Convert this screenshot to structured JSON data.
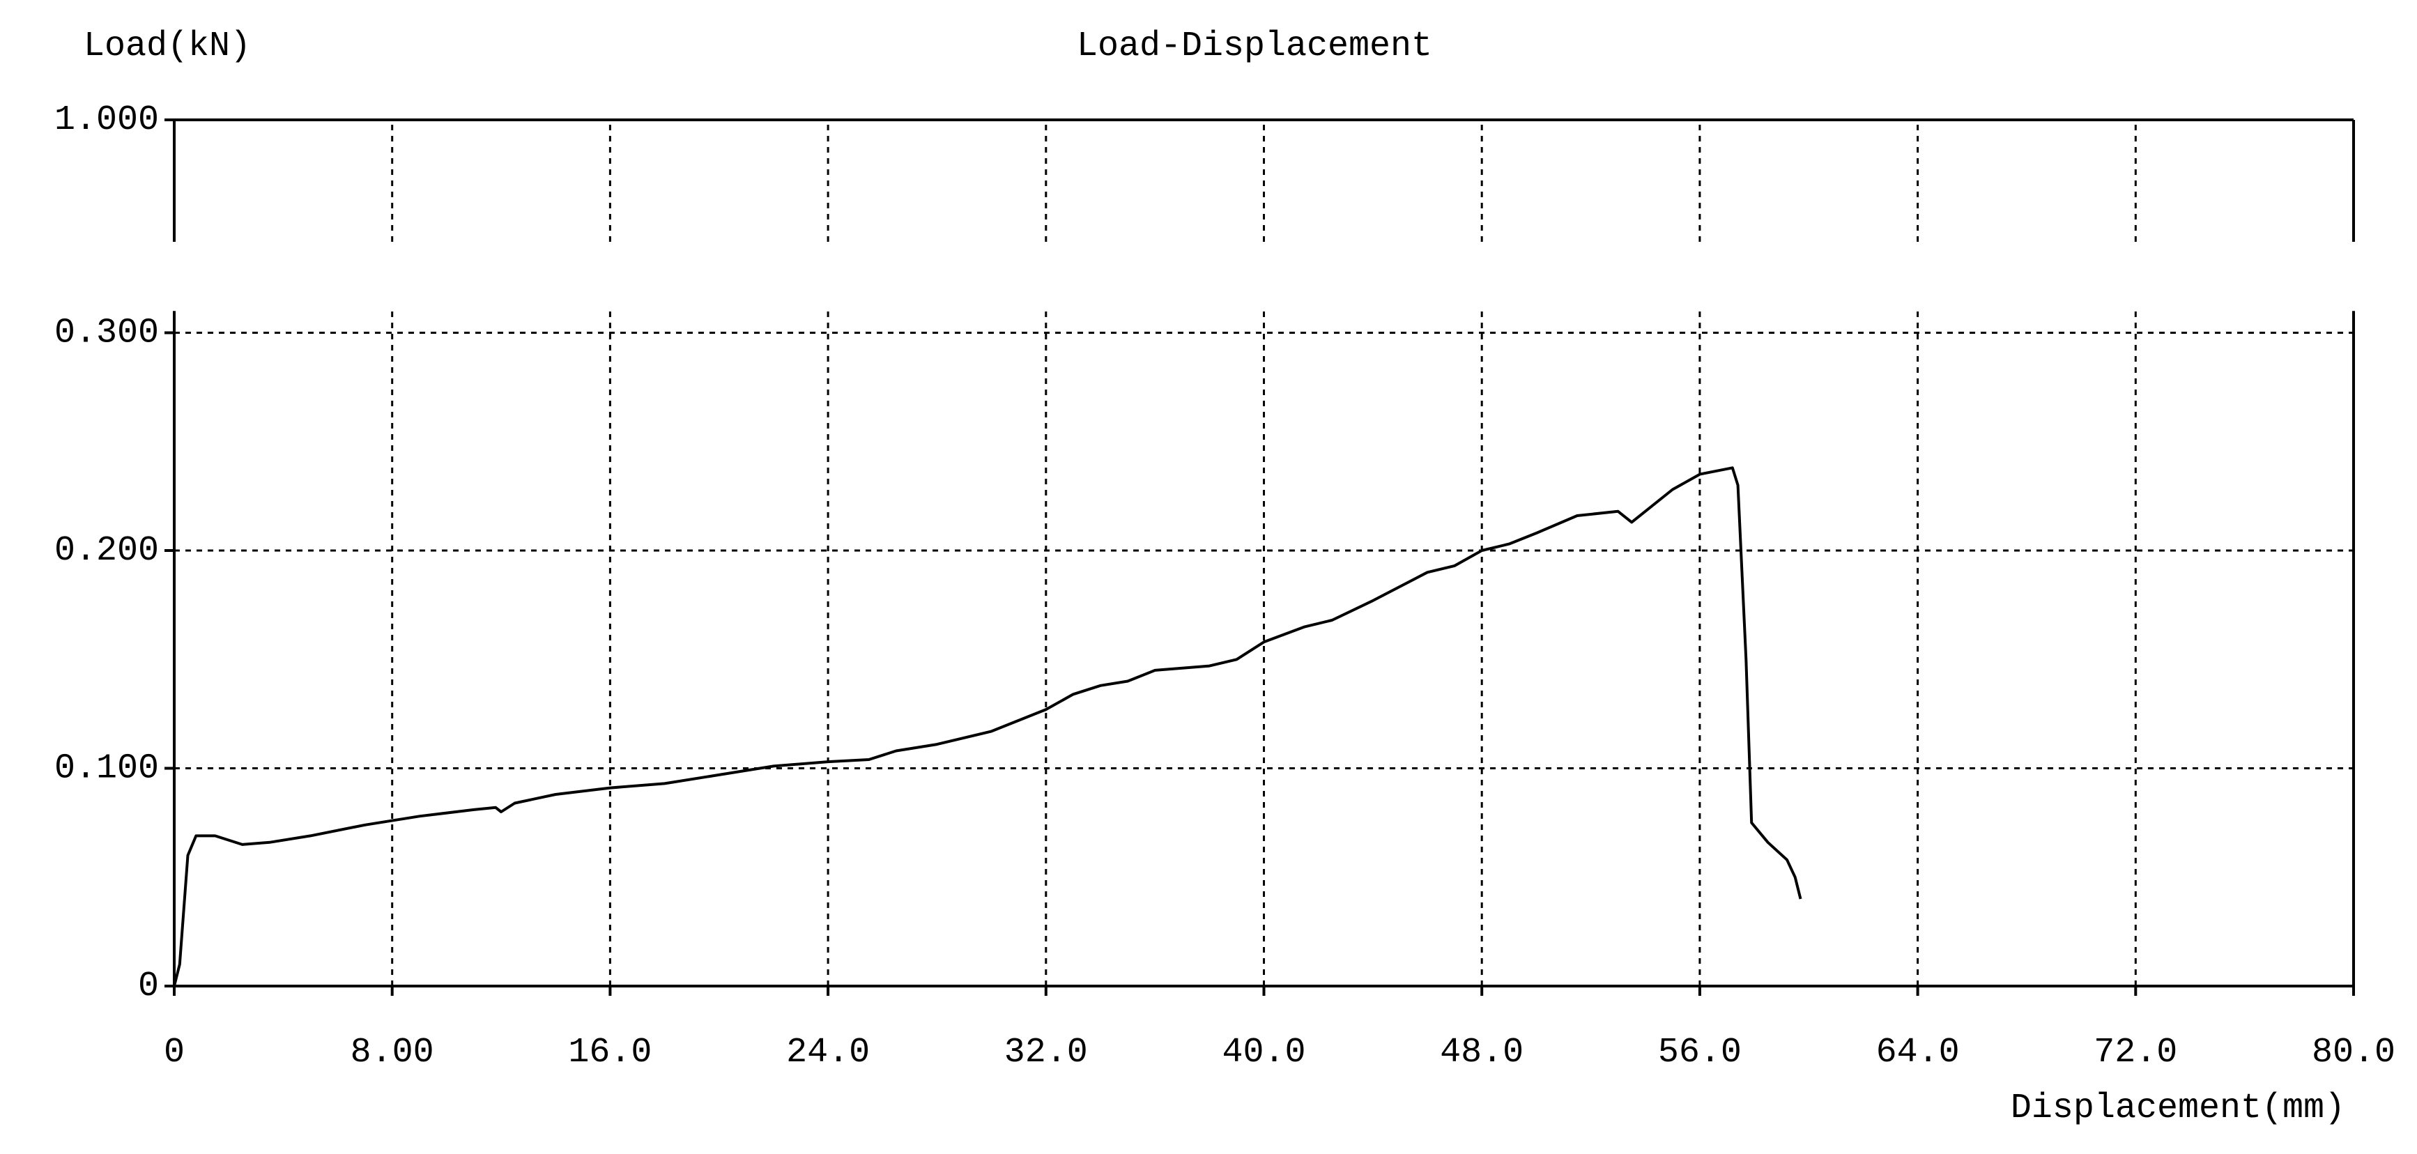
{
  "chart_data": {
    "type": "line",
    "title": "Load-Displacement",
    "y_label": "Load(kN)",
    "x_label": "Displacement(mm)",
    "x": [
      0,
      0.2,
      0.5,
      0.8,
      1.5,
      2.5,
      3.5,
      5,
      7,
      9,
      11,
      11.8,
      12,
      12.5,
      14,
      16,
      18,
      20,
      22,
      24,
      25.5,
      26.5,
      28,
      30,
      32,
      33,
      34,
      35,
      36,
      38,
      39,
      40,
      41.5,
      42.5,
      44,
      46,
      47,
      48,
      49,
      50,
      51.5,
      53,
      53.5,
      55,
      56,
      57.2,
      57.4,
      57.7,
      57.9,
      58.5,
      59.2,
      59.5,
      59.7
    ],
    "series": [
      {
        "color": "#000000",
        "values": [
          0,
          0.01,
          0.06,
          0.069,
          0.069,
          0.065,
          0.066,
          0.069,
          0.074,
          0.078,
          0.081,
          0.082,
          0.08,
          0.084,
          0.088,
          0.091,
          0.093,
          0.097,
          0.101,
          0.103,
          0.104,
          0.108,
          0.111,
          0.117,
          0.127,
          0.134,
          0.138,
          0.14,
          0.145,
          0.147,
          0.15,
          0.158,
          0.165,
          0.168,
          0.177,
          0.19,
          0.193,
          0.2,
          0.203,
          0.208,
          0.216,
          0.218,
          0.213,
          0.228,
          0.235,
          0.238,
          0.23,
          0.15,
          0.075,
          0.066,
          0.058,
          0.05,
          0.04
        ]
      }
    ],
    "xlim": [
      0,
      80
    ],
    "xticks": [
      0,
      {
        "value": 8,
        "label": "8.00"
      },
      {
        "value": 16,
        "label": "16.0"
      },
      {
        "value": 24,
        "label": "24.0"
      },
      {
        "value": 32,
        "label": "32.0"
      },
      {
        "value": 40,
        "label": "40.0"
      },
      {
        "value": 48,
        "label": "48.0"
      },
      {
        "value": 56,
        "label": "56.0"
      },
      {
        "value": 64,
        "label": "64.0"
      },
      {
        "value": 72,
        "label": "72.0"
      },
      {
        "value": 80,
        "label": "80.0"
      }
    ],
    "ylim": [
      0,
      1
    ],
    "y_break": [
      0.31,
      0.944
    ],
    "yticks": [
      0,
      {
        "value": 0.1,
        "label": "0.100"
      },
      {
        "value": 0.2,
        "label": "0.200"
      },
      {
        "value": 0.3,
        "label": "0.300"
      },
      {
        "value": 1,
        "label": "1.000"
      }
    ],
    "grid": true
  }
}
